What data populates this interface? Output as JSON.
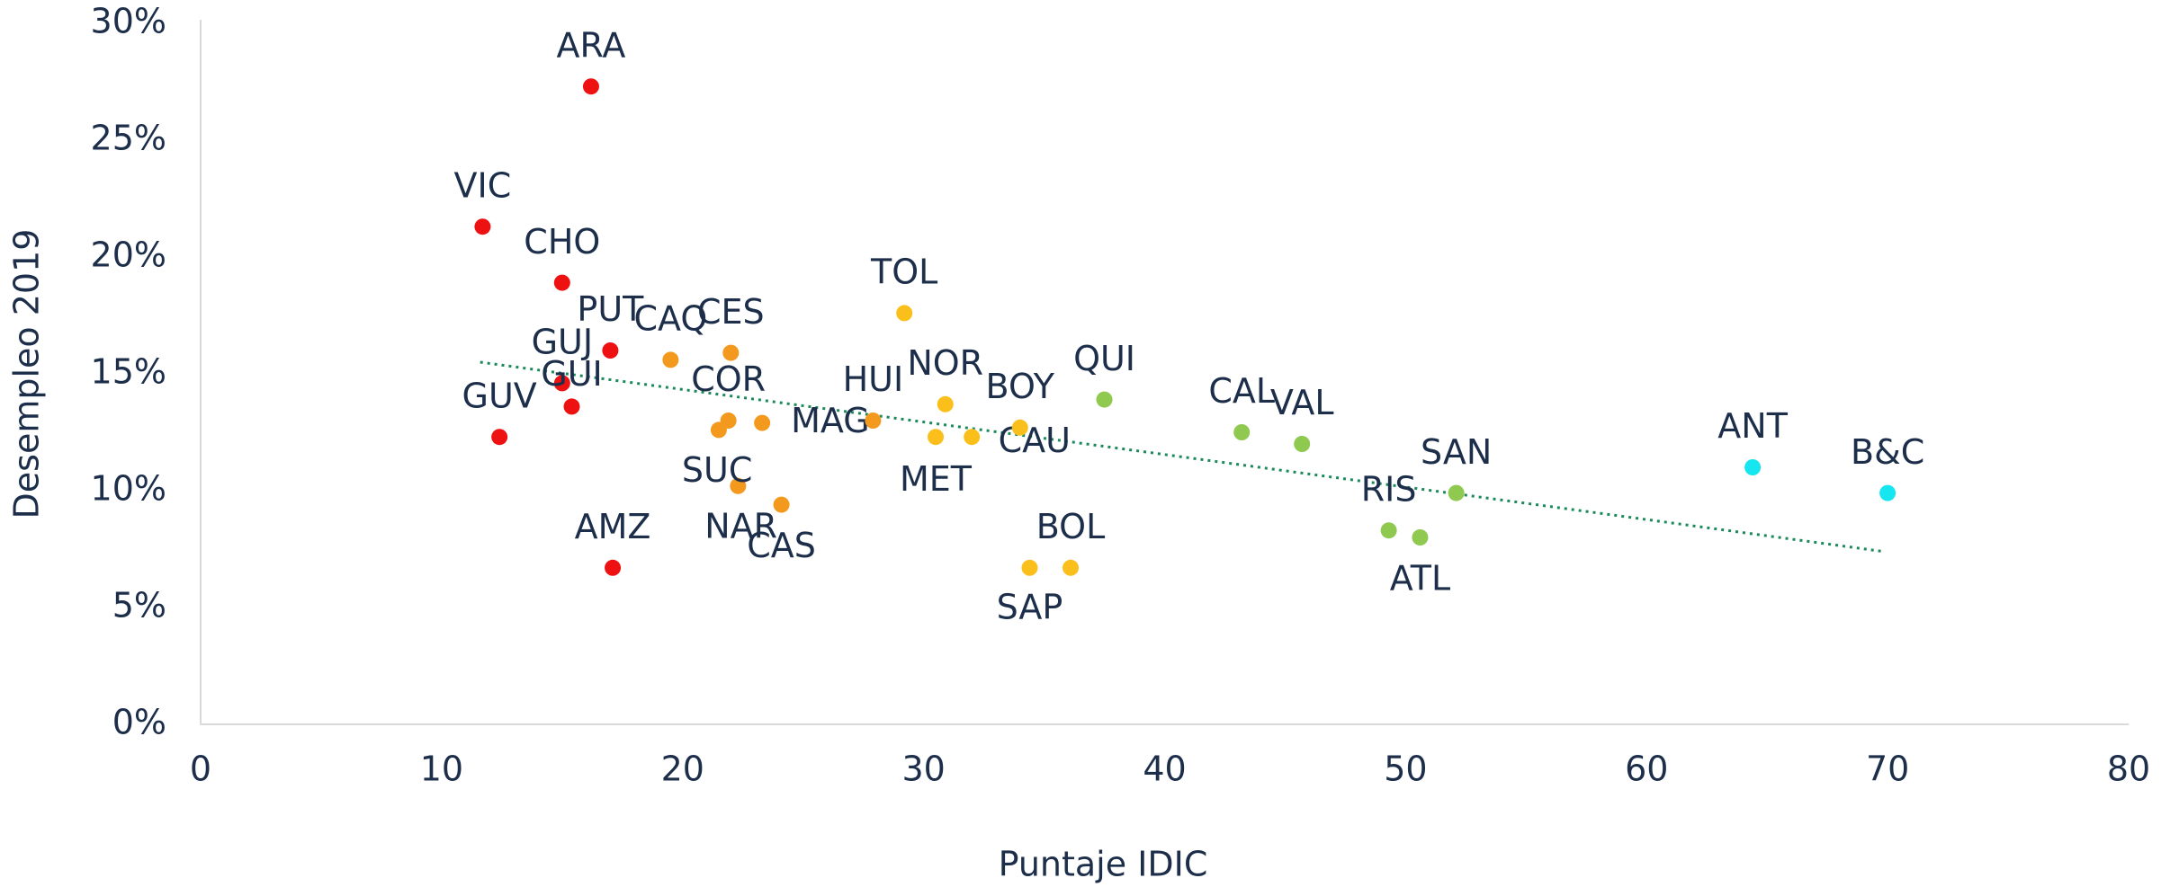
{
  "chart_data": {
    "type": "scatter",
    "xlabel": "Puntaje IDIC",
    "ylabel": "Desempleo 2019",
    "labels": [
      "ARA",
      "VIC",
      "CHO",
      "PUT",
      "GUJ",
      "GUI",
      "GUV",
      "AMZ",
      "CAQ",
      "CES",
      "COR",
      "NAR",
      "MAG",
      "SUC",
      "CAS",
      "HUI",
      "TOL",
      "NOR",
      "MET",
      "CAU",
      "BOY",
      "SAP",
      "BOL",
      "QUI",
      "CAL",
      "VAL",
      "SAN",
      "RIS",
      "ATL",
      "ANT",
      "B&C"
    ],
    "x": [
      16.2,
      11.7,
      15.0,
      17.0,
      15.0,
      15.4,
      12.4,
      17.1,
      19.5,
      22.0,
      21.9,
      21.5,
      23.3,
      22.3,
      24.1,
      27.9,
      29.2,
      30.9,
      30.5,
      32.0,
      34.0,
      34.4,
      36.1,
      37.5,
      43.2,
      45.7,
      52.1,
      49.3,
      50.6,
      64.4,
      70.0
    ],
    "values": [
      27.3,
      21.3,
      18.9,
      16.0,
      14.6,
      13.6,
      12.3,
      6.7,
      15.6,
      15.9,
      13.0,
      12.6,
      12.9,
      10.2,
      9.4,
      13.0,
      17.6,
      13.7,
      12.3,
      12.3,
      12.7,
      6.7,
      6.7,
      13.9,
      12.5,
      12.0,
      9.9,
      8.3,
      8.0,
      11.0,
      9.9
    ],
    "colors": [
      "#ee1111",
      "#ee1111",
      "#ee1111",
      "#ee1111",
      "#ee1111",
      "#ee1111",
      "#ee1111",
      "#ee1111",
      "#f39a1e",
      "#f39a1e",
      "#f39a1e",
      "#f39a1e",
      "#f39a1e",
      "#f39a1e",
      "#f39a1e",
      "#f39a1e",
      "#fbbf1c",
      "#fbbf1c",
      "#fbbf1c",
      "#fbbf1c",
      "#fbbf1c",
      "#fbbf1c",
      "#fbbf1c",
      "#8fc94f",
      "#8fc94f",
      "#8fc94f",
      "#8fc94f",
      "#8fc94f",
      "#8fc94f",
      "#16e6f0",
      "#16e6f0"
    ],
    "trendline": {
      "x": [
        11.6,
        69.8
      ],
      "values": [
        15.5,
        7.4
      ],
      "color": "#1b8a5a"
    },
    "xlim": [
      0,
      80
    ],
    "xticks": [
      0,
      10,
      20,
      30,
      40,
      50,
      60,
      70,
      80
    ],
    "ylim": [
      0,
      30
    ],
    "yticks": [
      {
        "value": 0,
        "label": "0%"
      },
      {
        "value": 5,
        "label": "5%"
      },
      {
        "value": 10,
        "label": "10%"
      },
      {
        "value": 15,
        "label": "15%"
      },
      {
        "value": 20,
        "label": "20%"
      },
      {
        "value": 25,
        "label": "25%"
      },
      {
        "value": 30,
        "label": "30%"
      }
    ]
  }
}
